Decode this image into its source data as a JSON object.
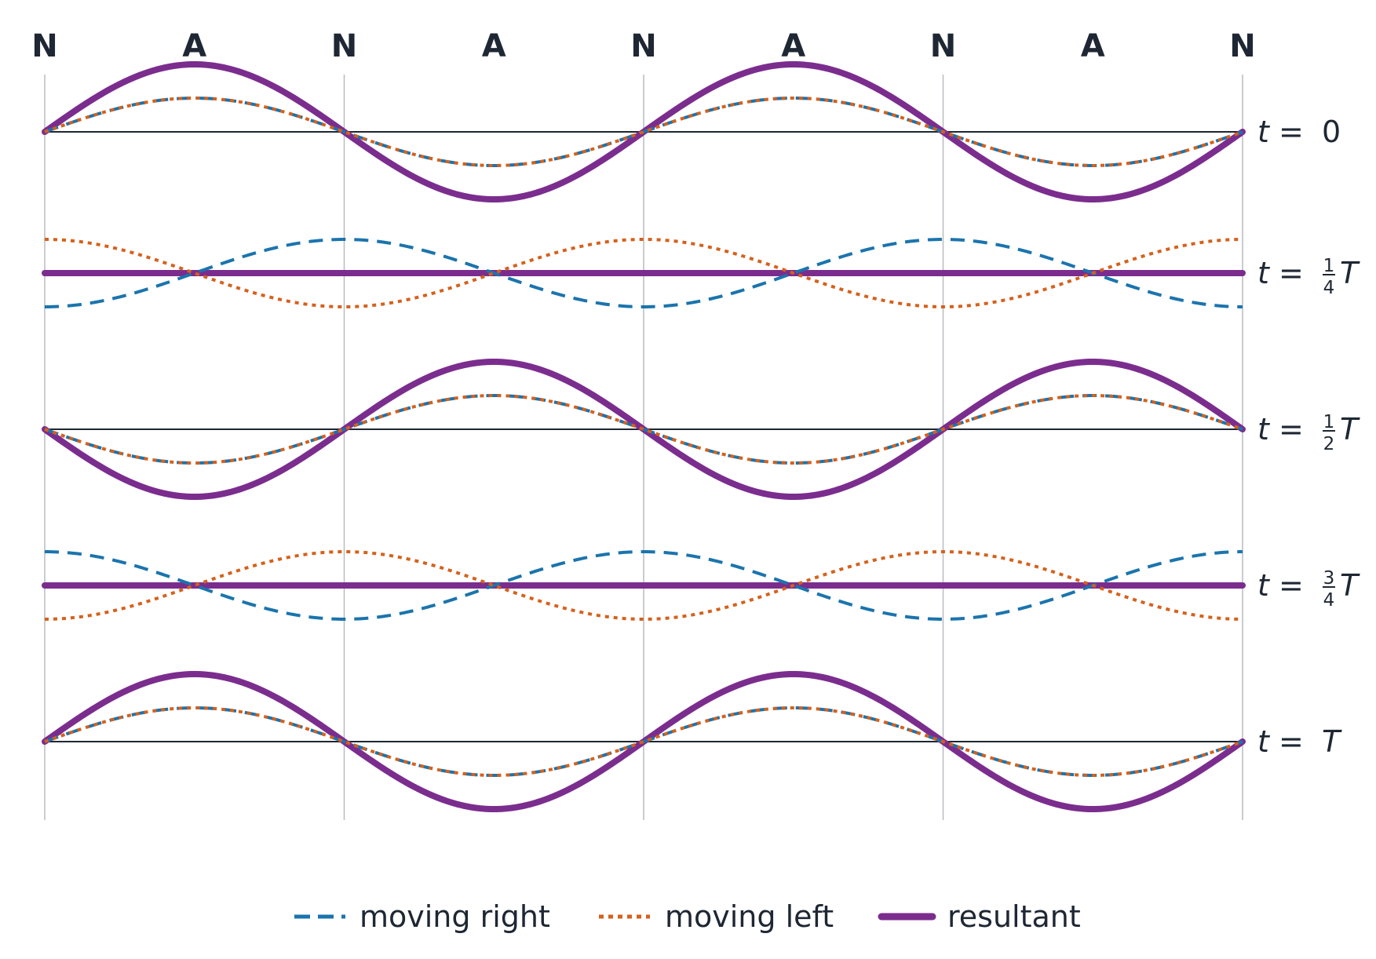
{
  "colors": {
    "moving_right": "#1b74ad",
    "moving_left": "#d5611c",
    "resultant": "#7b2d8e",
    "text": "#1e2733",
    "axis": "#1e2733",
    "guide": "#b9bcc2"
  },
  "chart_data": {
    "type": "line",
    "x_domain": [
      0,
      2
    ],
    "x_unit": "wavelength",
    "component_amplitude": 1,
    "resultant_amplitude": 2,
    "markers": [
      {
        "x": 0,
        "label": "N"
      },
      {
        "x": 0.25,
        "label": "A"
      },
      {
        "x": 0.5,
        "label": "N"
      },
      {
        "x": 0.75,
        "label": "A"
      },
      {
        "x": 1,
        "label": "N"
      },
      {
        "x": 1.25,
        "label": "A"
      },
      {
        "x": 1.5,
        "label": "N"
      },
      {
        "x": 1.75,
        "label": "A"
      },
      {
        "x": 2,
        "label": "N"
      }
    ],
    "snapshots": [
      {
        "t_fraction": 0,
        "label_prefix": "t = ",
        "label_main": "0",
        "frac_num": "",
        "frac_den": "",
        "label_suffix": ""
      },
      {
        "t_fraction": 0.25,
        "label_prefix": "t = ",
        "label_main": "",
        "frac_num": "1",
        "frac_den": "4",
        "label_suffix": "T"
      },
      {
        "t_fraction": 0.5,
        "label_prefix": "t = ",
        "label_main": "",
        "frac_num": "1",
        "frac_den": "2",
        "label_suffix": "T"
      },
      {
        "t_fraction": 0.75,
        "label_prefix": "t = ",
        "label_main": "",
        "frac_num": "3",
        "frac_den": "4",
        "label_suffix": "T"
      },
      {
        "t_fraction": 1,
        "label_prefix": "t = ",
        "label_main": "",
        "frac_num": "",
        "frac_den": "",
        "label_suffix": "T"
      }
    ],
    "series": [
      {
        "key": "moving_right",
        "name": "moving right",
        "style": "dashed"
      },
      {
        "key": "moving_left",
        "name": "moving left",
        "style": "dotted"
      },
      {
        "key": "resultant",
        "name": "resultant",
        "style": "solid"
      }
    ],
    "legend_position": "bottom-center"
  }
}
